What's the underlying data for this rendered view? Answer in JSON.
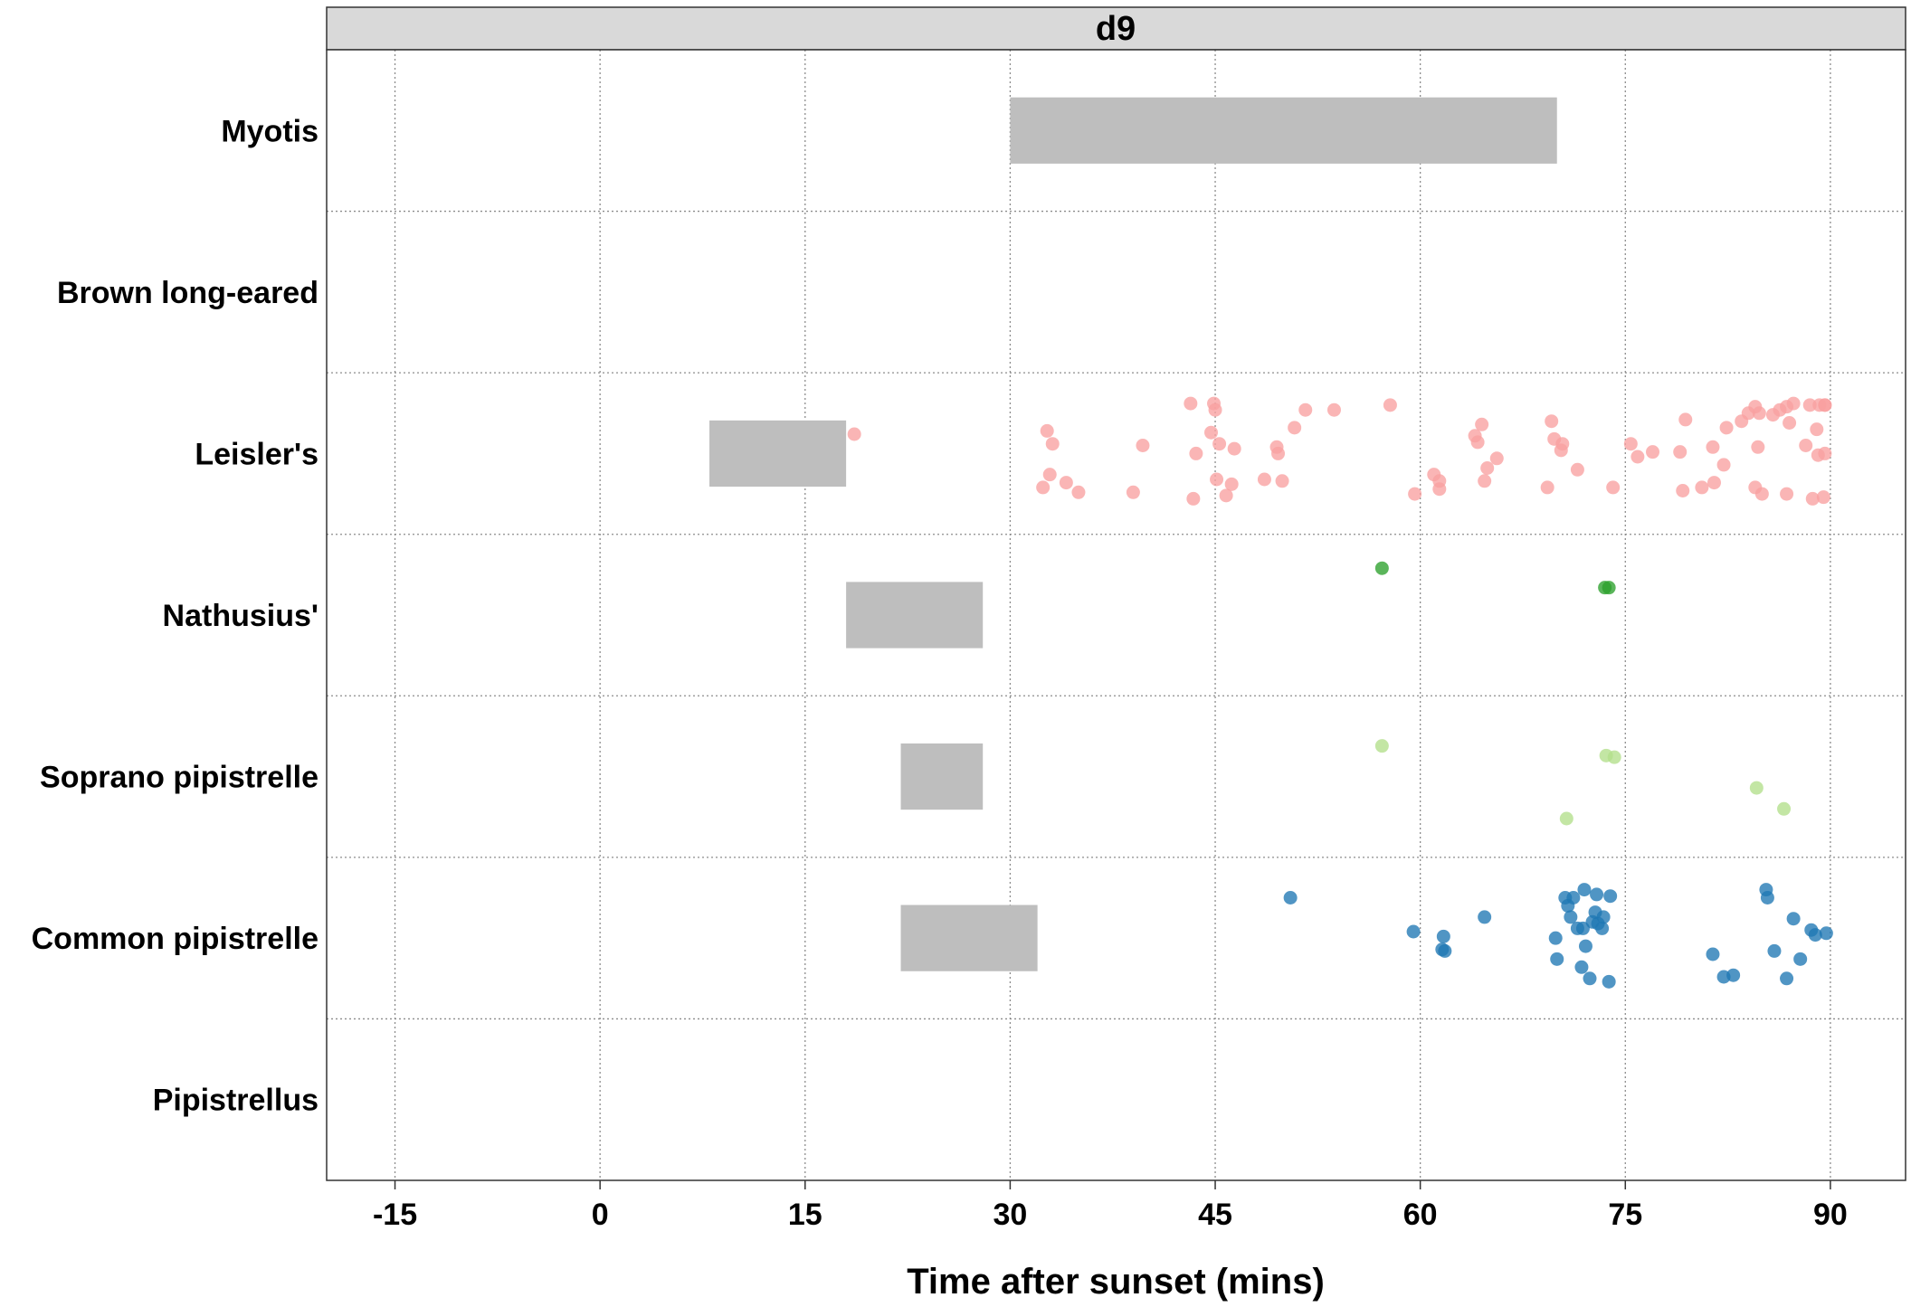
{
  "chart_data": {
    "type": "scatter",
    "facet_label": "d9",
    "xlabel": "Time after sunset (mins)",
    "ylabel": "",
    "xlim": [
      -20,
      95.5
    ],
    "x_ticks": [
      -15,
      0,
      15,
      30,
      45,
      60,
      75,
      90
    ],
    "x_tick_labels": [
      "-15",
      "0",
      "15",
      "30",
      "45",
      "60",
      "75",
      "90"
    ],
    "grid": true,
    "categories": [
      "Myotis",
      "Brown long-eared",
      "Leisler's",
      "Nathusius'",
      "Soprano pipistrelle",
      "Common pipistrelle",
      "Pipistrellus"
    ],
    "bars": [
      {
        "category": "Myotis",
        "start": 30,
        "end": 70
      },
      {
        "category": "Leisler's",
        "start": 8,
        "end": 18
      },
      {
        "category": "Nathusius'",
        "start": 18,
        "end": 28
      },
      {
        "category": "Soprano pipistrelle",
        "start": 22,
        "end": 28
      },
      {
        "category": "Common pipistrelle",
        "start": 22,
        "end": 32
      }
    ],
    "series": [
      {
        "category": "Leisler's",
        "color": "#F8A0A0",
        "points": [
          [
            18.6,
            0.12
          ],
          [
            32.7,
            0.14
          ],
          [
            33.1,
            0.06
          ],
          [
            32.4,
            -0.21
          ],
          [
            32.9,
            -0.13
          ],
          [
            34.1,
            -0.18
          ],
          [
            35.0,
            -0.24
          ],
          [
            39.0,
            -0.24
          ],
          [
            39.7,
            0.05
          ],
          [
            43.2,
            0.31
          ],
          [
            43.6,
            0.0
          ],
          [
            43.4,
            -0.28
          ],
          [
            44.7,
            0.13
          ],
          [
            44.9,
            0.31
          ],
          [
            45.0,
            0.27
          ],
          [
            45.3,
            0.06
          ],
          [
            45.1,
            -0.16
          ],
          [
            45.8,
            -0.26
          ],
          [
            46.4,
            0.03
          ],
          [
            46.2,
            -0.19
          ],
          [
            49.5,
            0.04
          ],
          [
            49.6,
            0.0
          ],
          [
            48.6,
            -0.16
          ],
          [
            49.9,
            -0.17
          ],
          [
            50.8,
            0.16
          ],
          [
            51.6,
            0.27
          ],
          [
            53.7,
            0.27
          ],
          [
            57.8,
            0.3
          ],
          [
            59.6,
            -0.25
          ],
          [
            61.0,
            -0.13
          ],
          [
            61.4,
            -0.17
          ],
          [
            61.4,
            -0.22
          ],
          [
            64.0,
            0.11
          ],
          [
            64.5,
            0.18
          ],
          [
            64.2,
            0.07
          ],
          [
            65.6,
            -0.03
          ],
          [
            64.7,
            -0.17
          ],
          [
            64.9,
            -0.09
          ],
          [
            69.6,
            0.2
          ],
          [
            69.8,
            0.09
          ],
          [
            70.4,
            0.06
          ],
          [
            70.3,
            0.02
          ],
          [
            69.3,
            -0.21
          ],
          [
            71.5,
            -0.1
          ],
          [
            74.1,
            -0.21
          ],
          [
            75.4,
            0.06
          ],
          [
            75.9,
            -0.02
          ],
          [
            77.0,
            0.01
          ],
          [
            79.0,
            0.01
          ],
          [
            79.2,
            -0.23
          ],
          [
            79.4,
            0.21
          ],
          [
            80.6,
            -0.21
          ],
          [
            81.5,
            -0.18
          ],
          [
            81.4,
            0.04
          ],
          [
            82.2,
            -0.07
          ],
          [
            82.4,
            0.16
          ],
          [
            83.5,
            0.2
          ],
          [
            84.0,
            0.25
          ],
          [
            84.5,
            0.29
          ],
          [
            84.7,
            0.04
          ],
          [
            84.8,
            0.25
          ],
          [
            84.5,
            -0.21
          ],
          [
            85.0,
            -0.25
          ],
          [
            85.8,
            0.24
          ],
          [
            86.3,
            0.27
          ],
          [
            86.8,
            0.29
          ],
          [
            87.0,
            0.19
          ],
          [
            86.8,
            -0.25
          ],
          [
            87.3,
            0.31
          ],
          [
            88.2,
            0.05
          ],
          [
            88.5,
            0.3
          ],
          [
            88.7,
            -0.28
          ],
          [
            89.0,
            0.15
          ],
          [
            89.2,
            0.3
          ],
          [
            89.6,
            0.3
          ],
          [
            89.1,
            -0.01
          ],
          [
            89.5,
            -0.27
          ],
          [
            89.6,
            0.3
          ],
          [
            89.6,
            0.0
          ]
        ]
      },
      {
        "category": "Nathusius'",
        "color": "#2CA02C",
        "points": [
          [
            57.2,
            0.29
          ],
          [
            73.5,
            0.17
          ],
          [
            73.8,
            0.17
          ]
        ]
      },
      {
        "category": "Soprano pipistrelle",
        "color": "#B2DF8A",
        "points": [
          [
            57.2,
            0.19
          ],
          [
            70.7,
            -0.26
          ],
          [
            73.6,
            0.13
          ],
          [
            74.2,
            0.12
          ],
          [
            84.6,
            -0.07
          ],
          [
            86.6,
            -0.2
          ]
        ]
      },
      {
        "category": "Common pipistrelle",
        "color": "#1F77B4",
        "points": [
          [
            50.5,
            0.25
          ],
          [
            59.5,
            0.04
          ],
          [
            61.7,
            0.01
          ],
          [
            61.6,
            -0.07
          ],
          [
            61.8,
            -0.08
          ],
          [
            64.7,
            0.13
          ],
          [
            69.9,
            0.0
          ],
          [
            70.0,
            -0.13
          ],
          [
            70.6,
            0.25
          ],
          [
            70.8,
            0.2
          ],
          [
            71.0,
            0.13
          ],
          [
            71.2,
            0.25
          ],
          [
            71.5,
            0.06
          ],
          [
            71.8,
            -0.18
          ],
          [
            71.9,
            0.06
          ],
          [
            72.0,
            0.3
          ],
          [
            72.1,
            -0.05
          ],
          [
            72.4,
            -0.25
          ],
          [
            72.6,
            0.1
          ],
          [
            72.8,
            0.16
          ],
          [
            72.9,
            0.27
          ],
          [
            73.0,
            0.09
          ],
          [
            73.3,
            0.06
          ],
          [
            73.4,
            0.13
          ],
          [
            73.8,
            -0.27
          ],
          [
            73.9,
            0.26
          ],
          [
            81.4,
            -0.1
          ],
          [
            82.2,
            -0.24
          ],
          [
            82.9,
            -0.23
          ],
          [
            85.3,
            0.3
          ],
          [
            85.4,
            0.25
          ],
          [
            85.9,
            -0.08
          ],
          [
            86.8,
            -0.25
          ],
          [
            87.3,
            0.12
          ],
          [
            87.8,
            -0.13
          ],
          [
            88.6,
            0.05
          ],
          [
            88.9,
            0.02
          ],
          [
            89.7,
            0.03
          ]
        ]
      }
    ]
  }
}
